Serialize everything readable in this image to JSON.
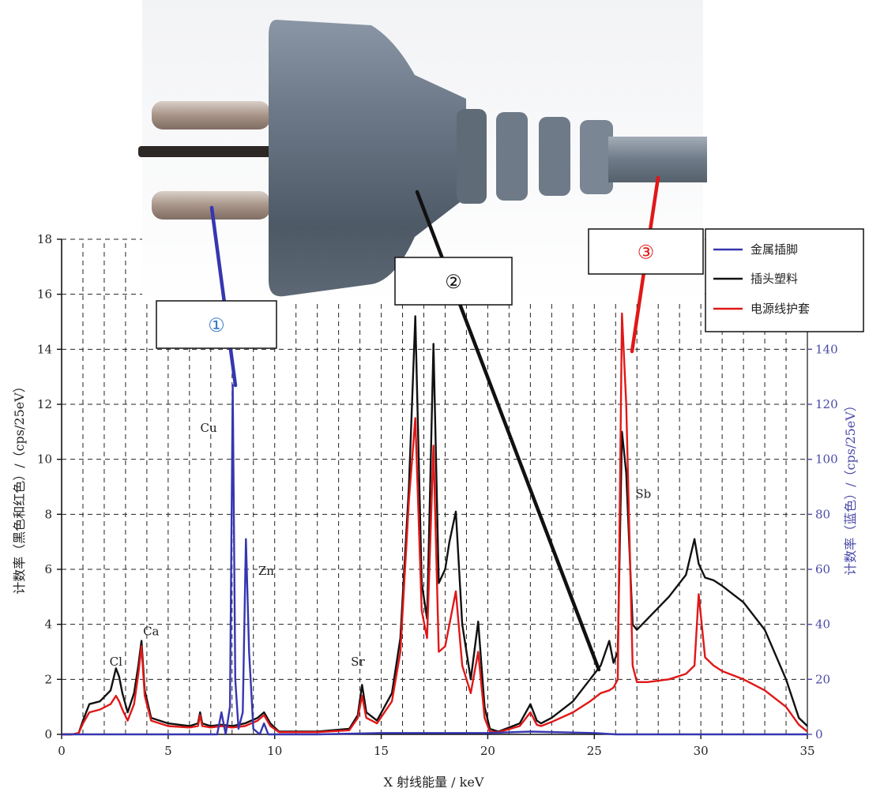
{
  "chart_data": {
    "type": "line",
    "xlabel": "X 射线能量 / keV",
    "ylabel_left": "计数率（黑色和红色）/（cps/25eV）",
    "ylabel_right": "计数率（蓝色）/（cps/25eV）",
    "xlim": [
      0,
      35
    ],
    "ylim_left": [
      0,
      18
    ],
    "ylim_right": [
      0,
      180
    ],
    "x_ticks": [
      0,
      5,
      10,
      15,
      20,
      25,
      30,
      35
    ],
    "y_ticks_left": [
      0,
      2,
      4,
      6,
      8,
      10,
      12,
      14,
      16,
      18
    ],
    "y_ticks_right": [
      0,
      20,
      40,
      60,
      80,
      100,
      120,
      140
    ],
    "grid": true,
    "legend_position": "top-right",
    "series": [
      {
        "name": "金属插脚",
        "color": "#3636b0",
        "axis": "right",
        "x": [
          0,
          6.5,
          7.3,
          7.5,
          7.7,
          7.9,
          8.03,
          8.15,
          8.3,
          8.5,
          8.65,
          8.8,
          9.0,
          9.3,
          9.5,
          9.7,
          10,
          12,
          15,
          20,
          22,
          25,
          26,
          30,
          35
        ],
        "y": [
          0,
          0,
          0,
          8,
          0,
          10,
          127,
          20,
          2,
          8,
          71,
          30,
          2,
          0,
          4,
          0,
          0,
          0,
          0.5,
          0.5,
          1,
          0.5,
          0,
          0,
          0
        ]
      },
      {
        "name": "插头塑料",
        "color": "#111111",
        "axis": "left",
        "x": [
          0,
          0.5,
          0.8,
          1.0,
          1.3,
          1.8,
          2.3,
          2.55,
          2.7,
          2.85,
          3.1,
          3.4,
          3.6,
          3.75,
          3.9,
          4.2,
          5,
          6,
          6.4,
          6.5,
          6.6,
          7,
          7.5,
          8.0,
          8.6,
          9.2,
          9.5,
          9.8,
          10.2,
          12,
          13.5,
          13.9,
          14.1,
          14.3,
          14.8,
          15.5,
          15.9,
          16.3,
          16.6,
          16.9,
          17.15,
          17.45,
          17.7,
          18.0,
          18.2,
          18.5,
          18.8,
          19.2,
          19.55,
          19.85,
          20.1,
          20.5,
          21.5,
          22.0,
          22.3,
          22.5,
          23,
          24,
          24.8,
          25.3,
          25.7,
          25.9,
          26.1,
          26.3,
          26.5,
          26.8,
          27.0,
          27.5,
          28.5,
          29.3,
          29.7,
          29.9,
          30.2,
          30.6,
          31,
          32,
          33,
          34,
          34.6,
          35
        ],
        "y": [
          0,
          0,
          0.05,
          0.5,
          1.1,
          1.2,
          1.6,
          2.4,
          2.1,
          1.5,
          0.8,
          1.5,
          2.5,
          3.4,
          1.6,
          0.6,
          0.4,
          0.3,
          0.4,
          0.8,
          0.4,
          0.3,
          0.35,
          0.3,
          0.4,
          0.6,
          0.8,
          0.4,
          0.1,
          0.1,
          0.2,
          0.7,
          1.8,
          0.8,
          0.5,
          1.5,
          3.5,
          9,
          15.2,
          5.5,
          4.2,
          14.2,
          5.5,
          6,
          7,
          8.1,
          4,
          2,
          4.1,
          1,
          0.2,
          0.1,
          0.4,
          1.1,
          0.5,
          0.4,
          0.6,
          1.2,
          2,
          2.5,
          3.4,
          2.6,
          3,
          11,
          9.5,
          4,
          3.8,
          4.2,
          5,
          5.8,
          7.1,
          6.2,
          5.7,
          5.6,
          5.4,
          4.8,
          3.8,
          2,
          0.6,
          0.3
        ]
      },
      {
        "name": "电源线护套",
        "color": "#e01818",
        "axis": "left",
        "x": [
          0,
          0.5,
          0.8,
          1.0,
          1.3,
          1.8,
          2.3,
          2.55,
          2.7,
          2.85,
          3.1,
          3.4,
          3.6,
          3.75,
          3.9,
          4.2,
          5,
          6,
          6.4,
          6.5,
          6.6,
          7,
          7.5,
          8.0,
          8.6,
          9.2,
          9.5,
          9.8,
          10.2,
          12,
          13.5,
          13.9,
          14.1,
          14.3,
          14.8,
          15.5,
          15.9,
          16.3,
          16.6,
          16.9,
          17.15,
          17.45,
          17.7,
          18.0,
          18.2,
          18.5,
          18.8,
          19.2,
          19.55,
          19.85,
          20.1,
          20.5,
          21.5,
          22.0,
          22.3,
          22.5,
          23,
          24,
          24.8,
          25.3,
          25.7,
          25.9,
          26.1,
          26.3,
          26.5,
          26.8,
          27.0,
          27.5,
          28.5,
          29.3,
          29.7,
          29.9,
          30.2,
          30.6,
          31,
          32,
          33,
          34,
          34.6,
          35
        ],
        "y": [
          0,
          0,
          0.05,
          0.4,
          0.8,
          0.9,
          1.1,
          1.4,
          1.2,
          0.9,
          0.5,
          1.1,
          2.2,
          3.2,
          1.4,
          0.5,
          0.3,
          0.25,
          0.3,
          0.7,
          0.3,
          0.25,
          0.3,
          0.25,
          0.3,
          0.5,
          0.7,
          0.3,
          0.08,
          0.08,
          0.15,
          0.6,
          1.4,
          0.6,
          0.4,
          1.2,
          3,
          8.5,
          11.5,
          4.5,
          3.5,
          10.5,
          3,
          3.2,
          4,
          5.2,
          2.5,
          1.5,
          3,
          0.6,
          0.1,
          0.08,
          0.3,
          0.8,
          0.35,
          0.3,
          0.45,
          0.8,
          1.2,
          1.5,
          1.6,
          1.7,
          2,
          15.3,
          12,
          2.5,
          1.9,
          1.9,
          2,
          2.2,
          2.5,
          5.1,
          2.8,
          2.5,
          2.3,
          2,
          1.6,
          1,
          0.35,
          0.1
        ]
      }
    ],
    "element_labels": [
      {
        "text": "Cl",
        "x": 2.55,
        "y": 2.5
      },
      {
        "text": "Ca",
        "x": 4.2,
        "y": 3.6
      },
      {
        "text": "Cu",
        "x": 6.9,
        "y": 11.0
      },
      {
        "text": "Zn",
        "x": 9.6,
        "y": 5.8
      },
      {
        "text": "Sr",
        "x": 13.9,
        "y": 2.5
      },
      {
        "text": "Sb",
        "x": 27.3,
        "y": 8.6
      }
    ],
    "callouts": [
      {
        "text": "①",
        "color": "#3a7ac8",
        "line_color": "#3636b0"
      },
      {
        "text": "②",
        "color": "#111111",
        "line_color": "#111111"
      },
      {
        "text": "③",
        "color": "#e01818",
        "line_color": "#e01818"
      }
    ]
  }
}
